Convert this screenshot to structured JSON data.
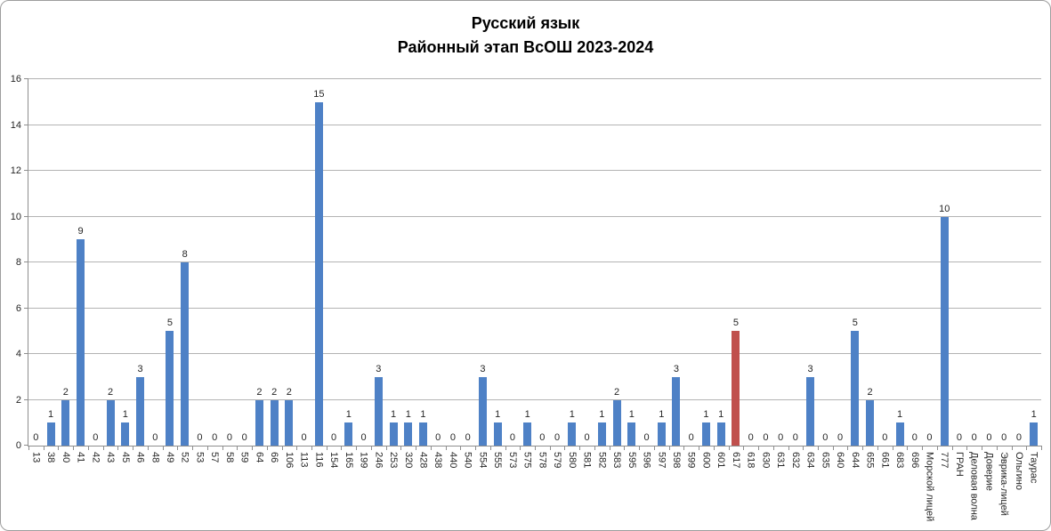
{
  "title": {
    "line1": "Русский язык",
    "line2": "Районный этап ВсОШ 2023-2024"
  },
  "chart_data": {
    "type": "bar",
    "title": "Русский язык — Районный этап ВсОШ 2023-2024",
    "xlabel": "",
    "ylabel": "",
    "ylim": [
      0,
      16
    ],
    "ytick_step": 2,
    "yticks": [
      0,
      2,
      4,
      6,
      8,
      10,
      12,
      14,
      16
    ],
    "grid": true,
    "legend_position": "none",
    "value_labels": true,
    "xtick_rotation": 90,
    "categories": [
      "13",
      "38",
      "40",
      "41",
      "42",
      "43",
      "45",
      "46",
      "48",
      "49",
      "52",
      "53",
      "57",
      "58",
      "59",
      "64",
      "66",
      "106",
      "113",
      "116",
      "154",
      "165",
      "199",
      "246",
      "253",
      "320",
      "428",
      "438",
      "440",
      "540",
      "554",
      "555",
      "573",
      "575",
      "578",
      "579",
      "580",
      "581",
      "582",
      "583",
      "595",
      "596",
      "597",
      "598",
      "599",
      "600",
      "601",
      "617",
      "618",
      "630",
      "631",
      "632",
      "634",
      "635",
      "640",
      "644",
      "655",
      "661",
      "683",
      "696",
      "Морской лицей",
      "777",
      "ГРАН",
      "Деловая волна",
      "Доверие",
      "Эврика-лицей",
      "Ольгино",
      "Таурас"
    ],
    "values": [
      0,
      1,
      2,
      9,
      0,
      2,
      1,
      3,
      0,
      5,
      8,
      0,
      0,
      0,
      0,
      2,
      2,
      2,
      0,
      15,
      0,
      1,
      0,
      3,
      1,
      1,
      1,
      0,
      0,
      0,
      3,
      1,
      0,
      1,
      0,
      0,
      1,
      0,
      1,
      2,
      1,
      0,
      1,
      3,
      0,
      1,
      1,
      5,
      0,
      0,
      0,
      0,
      3,
      0,
      0,
      5,
      2,
      0,
      1,
      0,
      0,
      10,
      0,
      0,
      0,
      0,
      0,
      1
    ],
    "highlighted_category": "617",
    "bar_color": "#4e81c6",
    "highlight_color": "#c0504d"
  },
  "colors": {
    "gridline": "#b3b3b3",
    "axis": "#8e8e8e",
    "text": "#262626",
    "frame_border": "#9d9d9d",
    "background": "#ffffff"
  }
}
